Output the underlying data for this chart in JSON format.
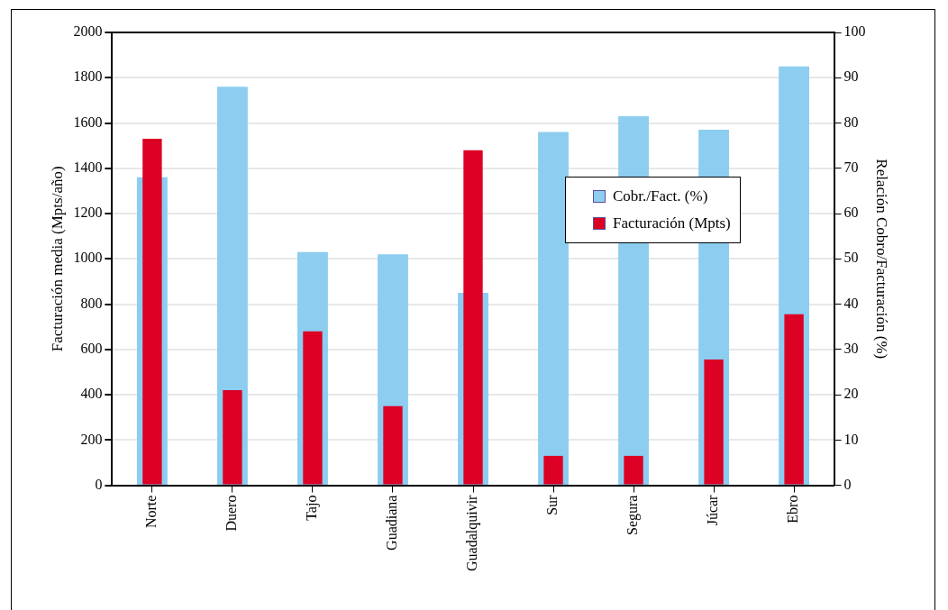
{
  "chart_data": {
    "type": "bar",
    "ylabel": "Facturación media (Mpts/año)",
    "y2label": "Relación Cobro/Facturación (%)",
    "categories": [
      "Norte",
      "Duero",
      "Tajo",
      "Guadiana",
      "Guadalquivir",
      "Sur",
      "Segura",
      "Júcar",
      "Ebro"
    ],
    "series": [
      {
        "name": "Cobr./Fact. (%)",
        "color": "#8ccdf0",
        "axis": "y2",
        "values": [
          68,
          88,
          51.5,
          51,
          42.5,
          78,
          81.5,
          78.5,
          92.5
        ]
      },
      {
        "name": "Facturación (Mpts)",
        "color": "#dc0024",
        "values": [
          1530,
          420,
          680,
          350,
          1480,
          130,
          130,
          555,
          755
        ]
      }
    ],
    "ylim": [
      0,
      2000
    ],
    "yticks": [
      0,
      200,
      400,
      600,
      800,
      1000,
      1200,
      1400,
      1600,
      1800,
      2000
    ],
    "y2lim": [
      0,
      100
    ],
    "y2ticks": [
      0,
      10,
      20,
      30,
      40,
      50,
      60,
      70,
      80,
      90,
      100
    ],
    "grid": "y",
    "legend": "right"
  }
}
